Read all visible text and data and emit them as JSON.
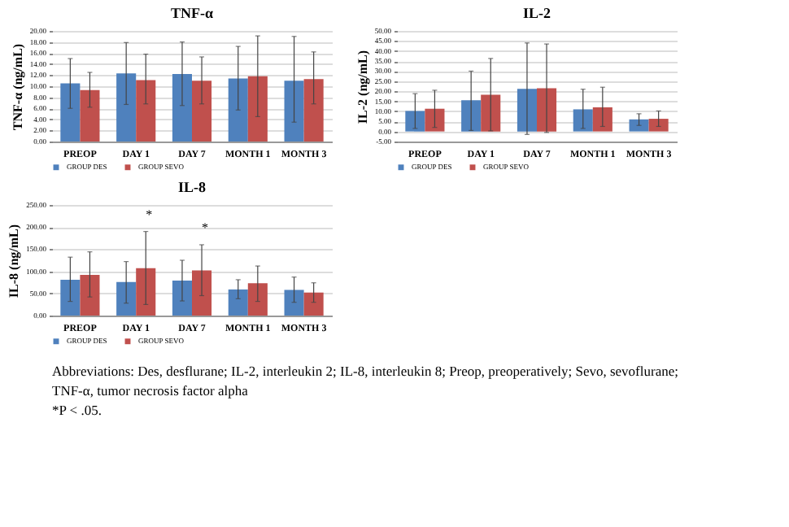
{
  "chart_data": [
    {
      "type": "bar",
      "title": "TNF-α",
      "ylabel": "TNF-α (ng/mL)",
      "categories": [
        "PREOP",
        "DAY 1",
        "DAY 7",
        "MONTH 1",
        "MONTH 3"
      ],
      "series": [
        {
          "name": "GROUP DES",
          "color": "#4f81bd",
          "values": [
            10.5,
            12.3,
            12.2,
            11.4,
            11.0
          ],
          "errors": [
            [
              6.0,
              15.0
            ],
            [
              6.7,
              17.9
            ],
            [
              6.5,
              18.0
            ],
            [
              5.7,
              17.2
            ],
            [
              3.5,
              19.0
            ]
          ]
        },
        {
          "name": "GROUP SEVO",
          "color": "#c0504d",
          "values": [
            9.3,
            11.1,
            11.0,
            11.8,
            11.3
          ],
          "errors": [
            [
              6.2,
              12.5
            ],
            [
              6.8,
              15.8
            ],
            [
              6.8,
              15.3
            ],
            [
              4.5,
              19.1
            ],
            [
              6.8,
              16.2
            ]
          ]
        }
      ],
      "ylim": [
        0,
        20
      ],
      "yticks": [
        {
          "value": 0,
          "label": "0.00"
        },
        {
          "value": 2,
          "label": "2.00"
        },
        {
          "value": 4,
          "label": "4.00"
        },
        {
          "value": 6,
          "label": "6.00"
        },
        {
          "value": 8,
          "label": "8.00"
        },
        {
          "value": 10,
          "label": "10.00"
        },
        {
          "value": 12,
          "label": "12.00"
        },
        {
          "value": 14,
          "label": "14.00"
        },
        {
          "value": 16,
          "label": "16.00"
        },
        {
          "value": 18,
          "label": "18.00"
        },
        {
          "value": 20,
          "label": "20.00"
        }
      ],
      "grid": "y",
      "legend": "bottom"
    },
    {
      "type": "bar",
      "title": "IL-2",
      "ylabel": "IL-2 (ng/mL)",
      "categories": [
        "PREOP",
        "DAY 1",
        "DAY 7",
        "MONTH 1",
        "MONTH 3"
      ],
      "series": [
        {
          "name": "GROUP DES",
          "color": "#4f81bd",
          "values": [
            10.2,
            15.5,
            21.2,
            11.0,
            6.0
          ],
          "errors": [
            [
              1.5,
              18.8
            ],
            [
              0.5,
              30.0
            ],
            [
              -1.5,
              44.0
            ],
            [
              1.5,
              21.0
            ],
            [
              3.0,
              8.8
            ]
          ]
        },
        {
          "name": "GROUP SEVO",
          "color": "#c0504d",
          "values": [
            11.3,
            18.3,
            21.5,
            12.0,
            6.3
          ],
          "errors": [
            [
              2.0,
              20.5
            ],
            [
              0.3,
              36.3
            ],
            [
              -0.5,
              43.5
            ],
            [
              2.5,
              22.0
            ],
            [
              2.5,
              10.2
            ]
          ]
        }
      ],
      "ylim": [
        -5,
        50
      ],
      "yticks": [
        {
          "value": -5,
          "label": "-5.00"
        },
        {
          "value": 0,
          "label": "0.00"
        },
        {
          "value": 5,
          "label": "5.00"
        },
        {
          "value": 10,
          "label": "10.00"
        },
        {
          "value": 15,
          "label": "15.00"
        },
        {
          "value": 20,
          "label": "20.00"
        },
        {
          "value": 25,
          "label": "25.00"
        },
        {
          "value": 30,
          "label": "30.00"
        },
        {
          "value": 35,
          "label": "35.00"
        },
        {
          "value": 40,
          "label": "40.00"
        },
        {
          "value": 45,
          "label": "45.00"
        },
        {
          "value": 50,
          "label": "50.00"
        }
      ],
      "grid": "y",
      "legend": "bottom"
    },
    {
      "type": "bar",
      "title": "IL-8",
      "ylabel": "IL-8 (ng/mL)",
      "categories": [
        "PREOP",
        "DAY 1",
        "DAY 7",
        "MONTH 1",
        "MONTH 3"
      ],
      "series": [
        {
          "name": "GROUP DES",
          "color": "#4f81bd",
          "values": [
            81,
            76,
            79,
            59,
            58
          ],
          "errors": [
            [
              32,
              132
            ],
            [
              28,
              122
            ],
            [
              33,
              125
            ],
            [
              38,
              81
            ],
            [
              30,
              87
            ]
          ]
        },
        {
          "name": "GROUP SEVO",
          "color": "#c0504d",
          "values": [
            92,
            107,
            102,
            73,
            52
          ],
          "errors": [
            [
              42,
              144
            ],
            [
              25,
              190
            ],
            [
              45,
              160
            ],
            [
              32,
              112
            ],
            [
              30,
              74
            ]
          ]
        }
      ],
      "ylim": [
        0,
        250
      ],
      "yticks": [
        {
          "value": 0,
          "label": "0.00"
        },
        {
          "value": 50,
          "label": "50.00"
        },
        {
          "value": 100,
          "label": "100.00"
        },
        {
          "value": 150,
          "label": "150.00"
        },
        {
          "value": 200,
          "label": "200.00"
        },
        {
          "value": 250,
          "label": "250.00"
        }
      ],
      "grid": "y",
      "legend": "bottom",
      "annotations": [
        {
          "text": "*",
          "x": "DAY 1",
          "y": 190
        },
        {
          "text": "*",
          "x": "DAY 7",
          "y": 160
        },
        "Abbreviations: Des, desflurane; IL-2, interleukin 2; IL-8, interleukin 8; Preop, preoperatively; Sevo, sevoflurane; TNF-α, tumor necrosis factor alpha",
        "*P < .05."
      ]
    }
  ]
}
